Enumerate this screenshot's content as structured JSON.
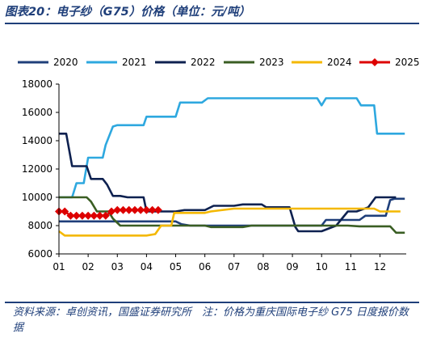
{
  "figure_title": "图表20：电子纱（G75）价格（单位：元/吨）",
  "source_note": "资料来源：卓创资讯，国盛证券研究所　注：价格为重庆国际电子纱 G75 日度报价数据",
  "chart_data": {
    "type": "line",
    "title": "",
    "xlabel": "",
    "ylabel": "",
    "categories": [
      "01",
      "02",
      "03",
      "04",
      "05",
      "06",
      "07",
      "08",
      "09",
      "10",
      "11",
      "12"
    ],
    "x_range": [
      1,
      12.9
    ],
    "ylim": [
      6000,
      18000
    ],
    "yticks": [
      6000,
      8000,
      10000,
      12000,
      14000,
      16000,
      18000
    ],
    "grid": false,
    "legend_position": "top",
    "series": [
      {
        "name": "2020",
        "color": "#1f3f7a",
        "marker": "none",
        "points": [
          [
            1.0,
            8300
          ],
          [
            1.5,
            8300
          ],
          [
            2.0,
            8300
          ],
          [
            3.0,
            8300
          ],
          [
            4.0,
            8300
          ],
          [
            4.7,
            8300
          ],
          [
            5.0,
            8300
          ],
          [
            5.2,
            8100
          ],
          [
            5.5,
            8000
          ],
          [
            6.0,
            8000
          ],
          [
            7.0,
            8000
          ],
          [
            8.0,
            8000
          ],
          [
            9.0,
            8000
          ],
          [
            9.5,
            8000
          ],
          [
            10.0,
            8000
          ],
          [
            10.15,
            8400
          ],
          [
            10.5,
            8400
          ],
          [
            11.0,
            8400
          ],
          [
            11.3,
            8400
          ],
          [
            11.5,
            8700
          ],
          [
            11.8,
            8700
          ],
          [
            12.0,
            8700
          ],
          [
            12.2,
            8700
          ],
          [
            12.35,
            9800
          ],
          [
            12.5,
            9900
          ],
          [
            12.85,
            9900
          ]
        ]
      },
      {
        "name": "2021",
        "color": "#2ea8df",
        "marker": "none",
        "points": [
          [
            1.0,
            10000
          ],
          [
            1.45,
            10000
          ],
          [
            1.6,
            11000
          ],
          [
            1.85,
            11000
          ],
          [
            2.0,
            12800
          ],
          [
            2.5,
            12800
          ],
          [
            2.6,
            13700
          ],
          [
            2.85,
            15000
          ],
          [
            3.0,
            15100
          ],
          [
            3.5,
            15100
          ],
          [
            3.9,
            15100
          ],
          [
            4.0,
            15700
          ],
          [
            4.5,
            15700
          ],
          [
            5.0,
            15700
          ],
          [
            5.15,
            16700
          ],
          [
            5.5,
            16700
          ],
          [
            5.9,
            16700
          ],
          [
            6.1,
            17000
          ],
          [
            7.0,
            17000
          ],
          [
            8.0,
            17000
          ],
          [
            9.0,
            17000
          ],
          [
            9.85,
            17000
          ],
          [
            10.0,
            16500
          ],
          [
            10.15,
            17000
          ],
          [
            10.5,
            17000
          ],
          [
            11.0,
            17000
          ],
          [
            11.2,
            17000
          ],
          [
            11.35,
            16500
          ],
          [
            11.8,
            16500
          ],
          [
            11.9,
            14500
          ],
          [
            12.0,
            14500
          ],
          [
            12.85,
            14500
          ]
        ]
      },
      {
        "name": "2022",
        "color": "#0e2150",
        "marker": "none",
        "points": [
          [
            1.0,
            14500
          ],
          [
            1.25,
            14500
          ],
          [
            1.45,
            12200
          ],
          [
            1.95,
            12200
          ],
          [
            2.1,
            11300
          ],
          [
            2.5,
            11300
          ],
          [
            2.65,
            10900
          ],
          [
            2.85,
            10100
          ],
          [
            3.1,
            10100
          ],
          [
            3.35,
            10000
          ],
          [
            3.9,
            10000
          ],
          [
            4.0,
            9000
          ],
          [
            4.5,
            9000
          ],
          [
            5.0,
            9000
          ],
          [
            5.3,
            9100
          ],
          [
            5.7,
            9100
          ],
          [
            6.0,
            9100
          ],
          [
            6.3,
            9400
          ],
          [
            6.6,
            9400
          ],
          [
            7.0,
            9400
          ],
          [
            7.3,
            9500
          ],
          [
            7.7,
            9500
          ],
          [
            7.95,
            9500
          ],
          [
            8.1,
            9300
          ],
          [
            8.6,
            9300
          ],
          [
            8.9,
            9300
          ],
          [
            9.1,
            7900
          ],
          [
            9.2,
            7600
          ],
          [
            9.5,
            7600
          ],
          [
            10.0,
            7600
          ],
          [
            10.5,
            8000
          ],
          [
            10.9,
            9000
          ],
          [
            11.2,
            9000
          ],
          [
            11.6,
            9300
          ],
          [
            11.85,
            10000
          ],
          [
            12.0,
            10000
          ],
          [
            12.55,
            10000
          ]
        ]
      },
      {
        "name": "2023",
        "color": "#3a5e23",
        "marker": "none",
        "points": [
          [
            1.0,
            10000
          ],
          [
            1.5,
            10000
          ],
          [
            1.95,
            10000
          ],
          [
            2.1,
            9700
          ],
          [
            2.3,
            9000
          ],
          [
            2.7,
            9000
          ],
          [
            2.85,
            8500
          ],
          [
            3.1,
            8000
          ],
          [
            4.0,
            8000
          ],
          [
            5.0,
            8000
          ],
          [
            5.5,
            8000
          ],
          [
            6.0,
            8000
          ],
          [
            6.2,
            7900
          ],
          [
            6.5,
            7900
          ],
          [
            7.0,
            7900
          ],
          [
            7.3,
            7900
          ],
          [
            7.6,
            8000
          ],
          [
            8.0,
            8000
          ],
          [
            9.0,
            8000
          ],
          [
            10.0,
            8000
          ],
          [
            10.9,
            8000
          ],
          [
            11.3,
            7950
          ],
          [
            11.9,
            7950
          ],
          [
            12.0,
            7950
          ],
          [
            12.35,
            7950
          ],
          [
            12.55,
            7500
          ],
          [
            12.85,
            7500
          ]
        ]
      },
      {
        "name": "2024",
        "color": "#f4b800",
        "marker": "none",
        "points": [
          [
            1.0,
            7600
          ],
          [
            1.2,
            7300
          ],
          [
            2.0,
            7300
          ],
          [
            3.0,
            7300
          ],
          [
            3.6,
            7300
          ],
          [
            4.0,
            7300
          ],
          [
            4.3,
            7400
          ],
          [
            4.5,
            8000
          ],
          [
            4.7,
            8000
          ],
          [
            4.85,
            8000
          ],
          [
            4.95,
            8900
          ],
          [
            5.3,
            8900
          ],
          [
            6.0,
            8900
          ],
          [
            6.2,
            9000
          ],
          [
            7.0,
            9200
          ],
          [
            8.0,
            9200
          ],
          [
            9.0,
            9200
          ],
          [
            10.0,
            9200
          ],
          [
            11.0,
            9200
          ],
          [
            11.6,
            9200
          ],
          [
            11.8,
            9200
          ],
          [
            12.0,
            9000
          ],
          [
            12.7,
            9000
          ]
        ]
      },
      {
        "name": "2025",
        "color": "#dd0000",
        "marker": "diamond",
        "points": [
          [
            1.0,
            9000
          ],
          [
            1.2,
            9000
          ],
          [
            1.4,
            8700
          ],
          [
            1.6,
            8700
          ],
          [
            1.8,
            8700
          ],
          [
            2.0,
            8700
          ],
          [
            2.2,
            8700
          ],
          [
            2.4,
            8700
          ],
          [
            2.6,
            8700
          ],
          [
            2.8,
            9000
          ],
          [
            3.0,
            9100
          ],
          [
            3.2,
            9100
          ],
          [
            3.4,
            9100
          ],
          [
            3.6,
            9100
          ],
          [
            3.8,
            9100
          ],
          [
            4.0,
            9100
          ],
          [
            4.2,
            9100
          ],
          [
            4.4,
            9100
          ]
        ]
      }
    ]
  }
}
